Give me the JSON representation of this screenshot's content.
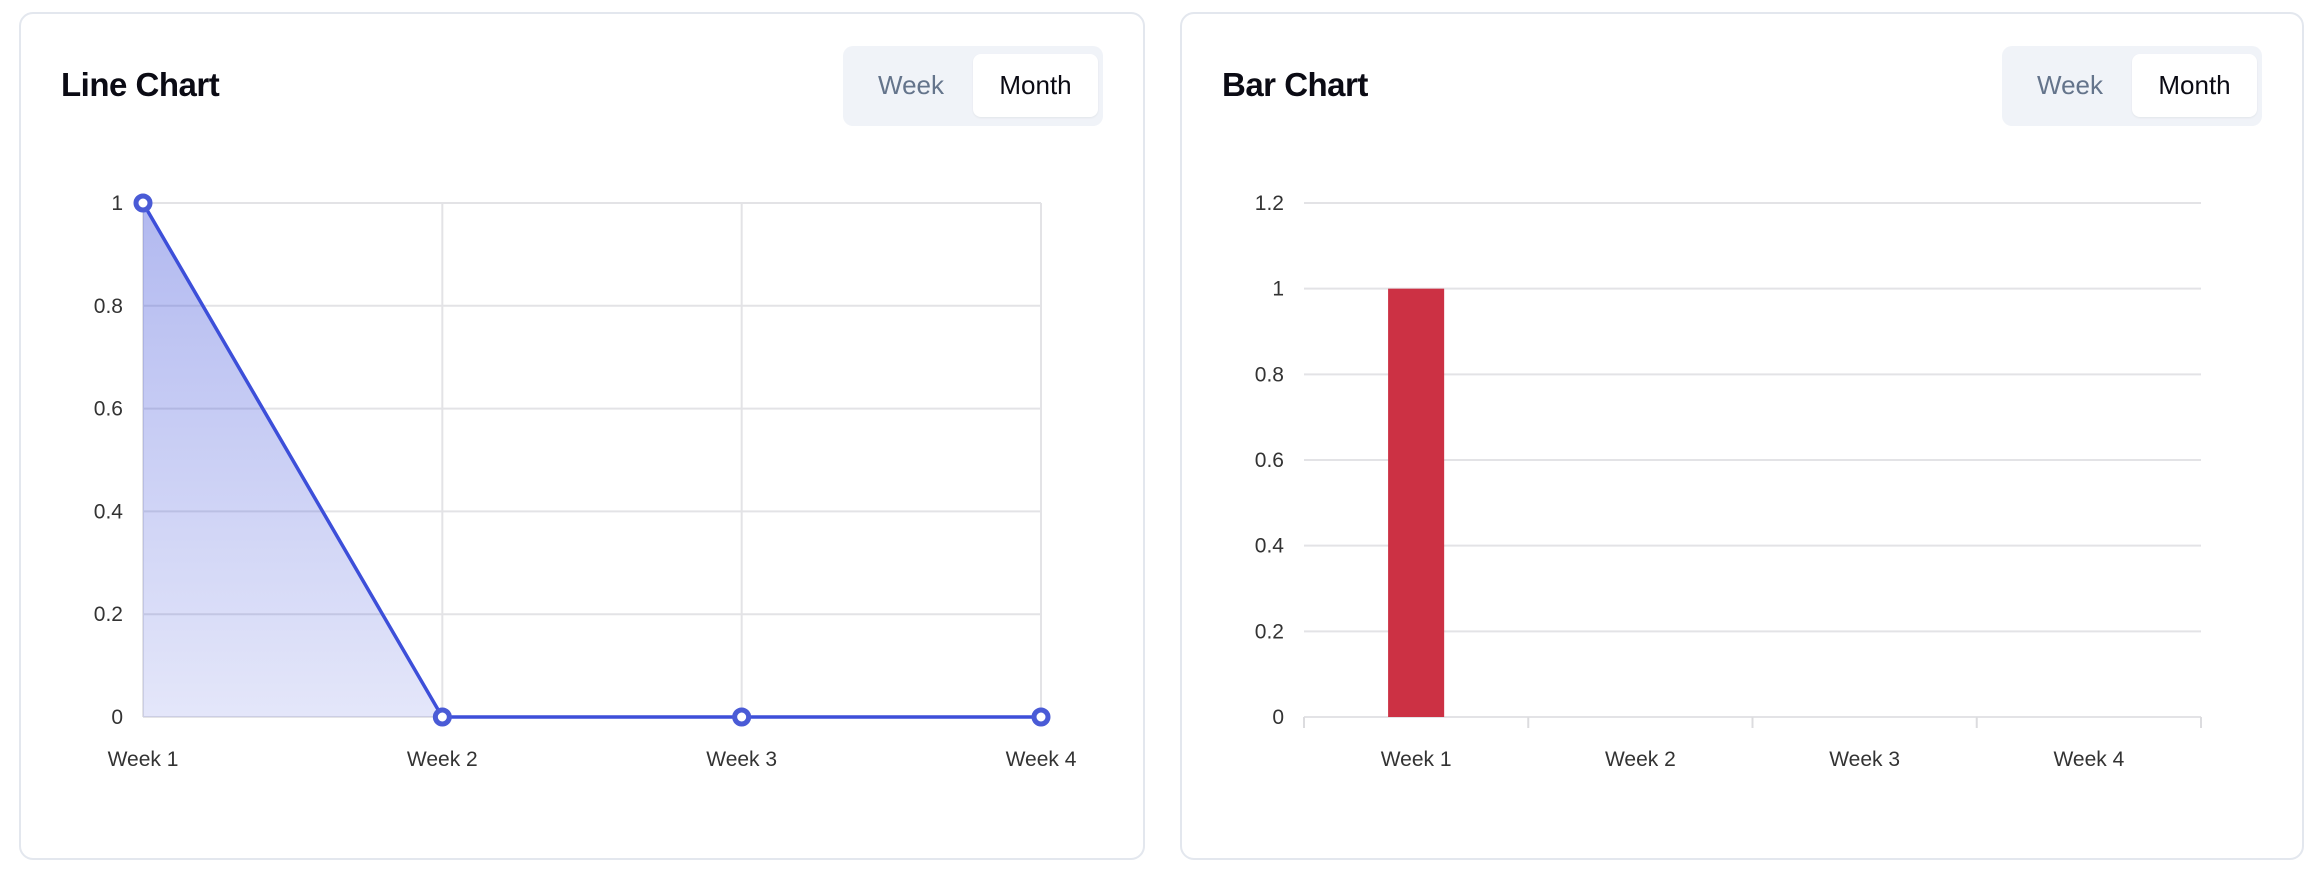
{
  "chart_data": [
    {
      "type": "line",
      "title": "Line Chart",
      "categories": [
        "Week 1",
        "Week 2",
        "Week 3",
        "Week 4"
      ],
      "values": [
        1,
        0,
        0,
        0
      ],
      "ylim": [
        0,
        1
      ],
      "yticks": [
        "0",
        "0.2",
        "0.4",
        "0.6",
        "0.8",
        "1"
      ],
      "grid": true,
      "color": "#3d4fd9",
      "fill": "area-gradient",
      "toggle": {
        "options": [
          "Week",
          "Month"
        ],
        "selected": "Month"
      }
    },
    {
      "type": "bar",
      "title": "Bar Chart",
      "categories": [
        "Week 1",
        "Week 2",
        "Week 3",
        "Week 4"
      ],
      "values": [
        1,
        0,
        0,
        0
      ],
      "ylim": [
        0,
        1.2
      ],
      "yticks": [
        "0",
        "0.2",
        "0.4",
        "0.6",
        "0.8",
        "1",
        "1.2"
      ],
      "grid": true,
      "color": "#cc3144",
      "toggle": {
        "options": [
          "Week",
          "Month"
        ],
        "selected": "Month"
      }
    }
  ]
}
